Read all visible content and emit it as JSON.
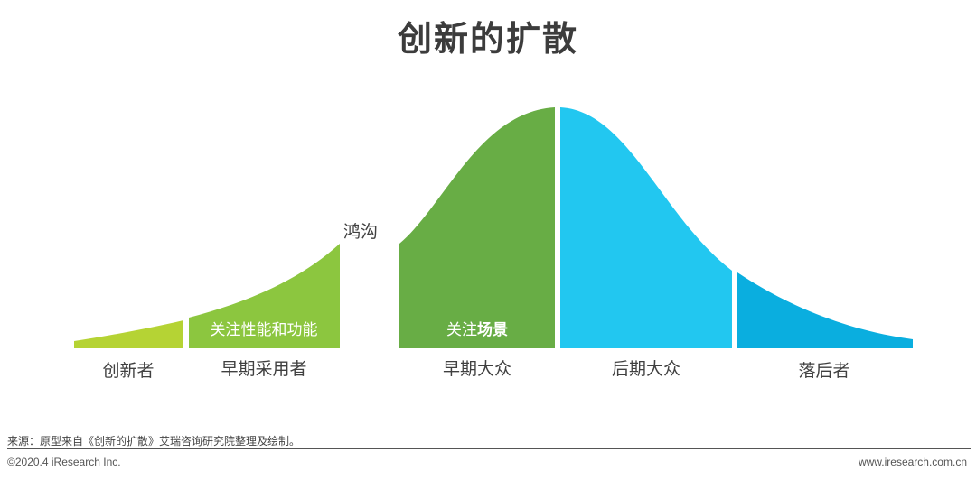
{
  "title": "创新的扩散",
  "stages": {
    "innovators": "创新者",
    "early_adopters": "早期采用者",
    "early_majority": "早期大众",
    "late_majority": "后期大众",
    "laggards": "落后者"
  },
  "focus": {
    "early_adopters": "关注性能和功能",
    "early_majority_prefix": "关注",
    "early_majority_bold": "场景"
  },
  "chasm_label": "鸿沟",
  "source": "来源：原型来自《创新的扩散》艾瑞咨询研究院整理及绘制。",
  "copyright": "©2020.4 iResearch Inc.",
  "website": "www.iresearch.com.cn",
  "colors": {
    "innovators": "#b5d334",
    "early_adopters": "#8cc63f",
    "early_majority": "#68ad45",
    "late_majority": "#22c7f0",
    "laggards": "#0aaedf"
  }
}
